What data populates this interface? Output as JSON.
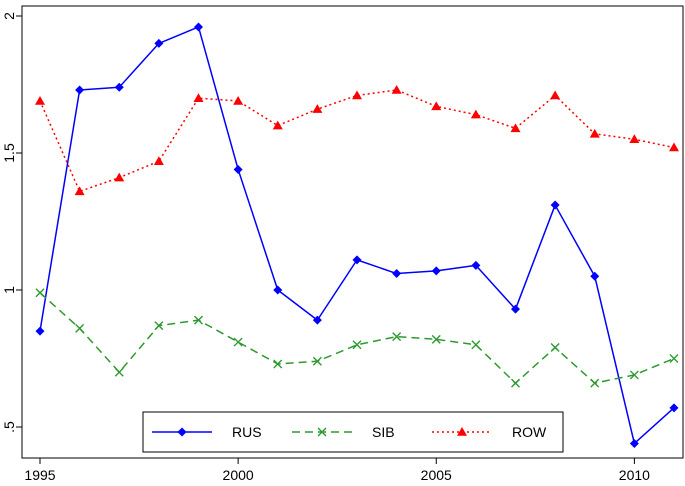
{
  "chart_data": {
    "type": "line",
    "x": [
      1995,
      1996,
      1997,
      1998,
      1999,
      2000,
      2001,
      2002,
      2003,
      2004,
      2005,
      2006,
      2007,
      2008,
      2009,
      2010,
      2011
    ],
    "xlim": [
      1995,
      2011
    ],
    "ylim": [
      0.5,
      2.0
    ],
    "xticks": [
      "1995",
      "2000",
      "2005",
      "2010"
    ],
    "yticks": [
      ".5",
      "1",
      "1.5",
      "2"
    ],
    "grid": false,
    "legend_position": "bottom-center",
    "series": [
      {
        "name": "RUS",
        "color": "#0000ff",
        "marker": "diamond",
        "line_style": "solid",
        "values": [
          0.85,
          1.73,
          1.74,
          1.9,
          1.96,
          1.44,
          1.0,
          0.89,
          1.11,
          1.06,
          1.07,
          1.09,
          0.93,
          1.31,
          1.05,
          0.44,
          0.57
        ]
      },
      {
        "name": "SIB",
        "color": "#2e9a2e",
        "marker": "x",
        "line_style": "dashed",
        "values": [
          0.99,
          0.86,
          0.7,
          0.87,
          0.89,
          0.81,
          0.73,
          0.74,
          0.8,
          0.83,
          0.82,
          0.8,
          0.66,
          0.79,
          0.66,
          0.69,
          0.75
        ]
      },
      {
        "name": "ROW",
        "color": "#ff0000",
        "marker": "triangle",
        "line_style": "dotted",
        "values": [
          1.69,
          1.36,
          1.41,
          1.47,
          1.7,
          1.69,
          1.6,
          1.66,
          1.71,
          1.73,
          1.67,
          1.64,
          1.59,
          1.71,
          1.57,
          1.55,
          1.52
        ]
      }
    ]
  }
}
